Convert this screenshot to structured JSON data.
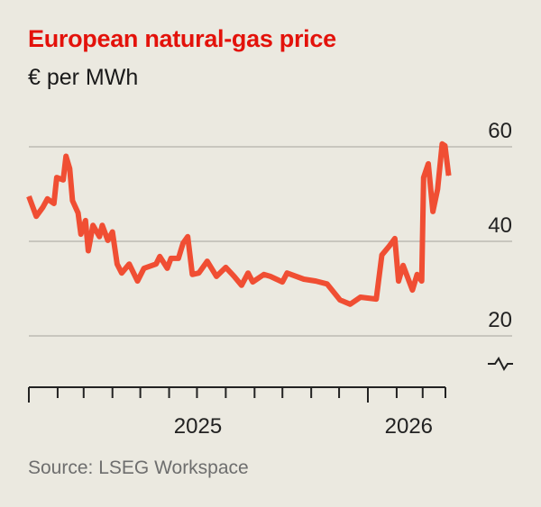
{
  "chart_data": {
    "type": "line",
    "title": "European natural-gas price",
    "subtitle": "€ per MWh",
    "source": "Source: LSEG Workspace",
    "xlabel": "",
    "ylabel": "",
    "ylim": [
      9,
      60
    ],
    "y_axis_break": true,
    "y_ticks": [
      20,
      40,
      60
    ],
    "y_tick_labels": [
      "20",
      "40",
      "60"
    ],
    "y_axis_position": "right",
    "grid": true,
    "x_range": [
      "2025-01-01",
      "2026-03-29"
    ],
    "x_tick_labels": [
      {
        "label": "2025",
        "date": "2025-07-02"
      },
      {
        "label": "2026",
        "date": "2026-02-14"
      }
    ],
    "line_color": "#f04e33",
    "title_color": "#e3120b",
    "series": [
      {
        "x": [
          "2025-01-01",
          "2025-01-09",
          "2025-01-16",
          "2025-01-21",
          "2025-01-28",
          "2025-01-31",
          "2025-02-07",
          "2025-02-10",
          "2025-02-14",
          "2025-02-17",
          "2025-02-23",
          "2025-02-26",
          "2025-03-03",
          "2025-03-06",
          "2025-03-11",
          "2025-03-18",
          "2025-03-21",
          "2025-03-27",
          "2025-04-01",
          "2025-04-06",
          "2025-04-11",
          "2025-04-19",
          "2025-04-28",
          "2025-05-05",
          "2025-05-18",
          "2025-05-22",
          "2025-05-30",
          "2025-06-03",
          "2025-06-11",
          "2025-06-16",
          "2025-06-21",
          "2025-06-26",
          "2025-07-03",
          "2025-07-12",
          "2025-07-22",
          "2025-08-01",
          "2025-08-10",
          "2025-08-18",
          "2025-08-25",
          "2025-08-30",
          "2025-09-11",
          "2025-09-18",
          "2025-10-01",
          "2025-10-06",
          "2025-10-24",
          "2025-11-06",
          "2025-11-18",
          "2025-12-02",
          "2025-12-13",
          "2025-12-24",
          "2026-01-01",
          "2026-01-10",
          "2026-01-16",
          "2026-01-24",
          "2026-01-30",
          "2026-02-03",
          "2026-02-08",
          "2026-02-18",
          "2026-02-23",
          "2026-02-28",
          "2026-03-02",
          "2026-03-07",
          "2026-03-12",
          "2026-03-17",
          "2026-03-22",
          "2026-03-25",
          "2026-03-29"
        ],
        "values": [
          49.5,
          45.3,
          47.2,
          49,
          48,
          53.5,
          53,
          58,
          55.4,
          48.6,
          46,
          41.5,
          44.4,
          38,
          43.4,
          41,
          43.4,
          40.2,
          42,
          35.2,
          33.3,
          35.2,
          31.6,
          34.3,
          35.2,
          36.8,
          34.3,
          36.4,
          36.4,
          39.6,
          41,
          33,
          33.3,
          35.8,
          32.6,
          34.5,
          32.6,
          30.7,
          33.3,
          31.4,
          33,
          32.6,
          31.4,
          33.3,
          32,
          31.6,
          31,
          27.6,
          26.7,
          28.2,
          28,
          27.8,
          37.1,
          39,
          40.6,
          31.6,
          34.9,
          29.7,
          33,
          31.6,
          53.5,
          56.4,
          46.3,
          51,
          60.6,
          60.2,
          53.9
        ]
      }
    ]
  }
}
